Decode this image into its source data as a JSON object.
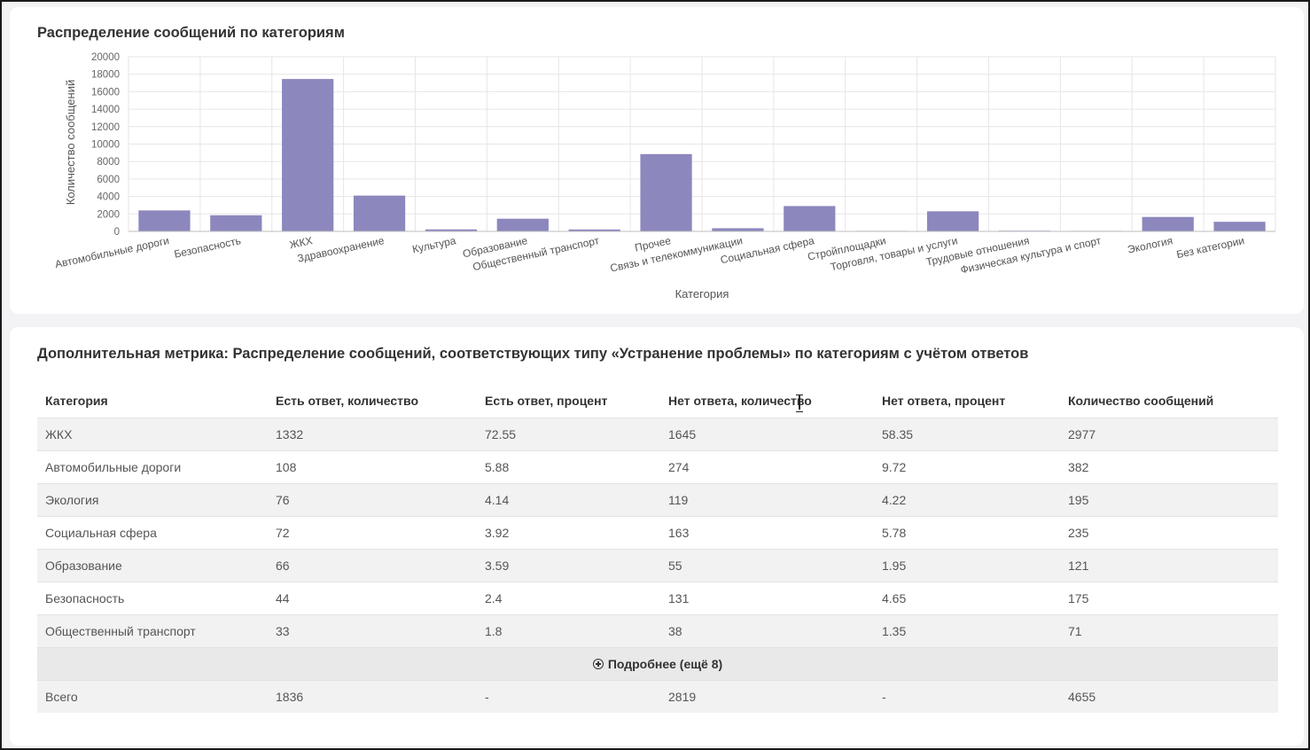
{
  "chart_card": {
    "title": "Распределение сообщений по категориям"
  },
  "chart_data": {
    "type": "bar",
    "title": "Распределение сообщений по категориям",
    "xlabel": "Категория",
    "ylabel": "Количество сообщений",
    "ylim": [
      0,
      20000
    ],
    "yticks": [
      0,
      2000,
      4000,
      6000,
      8000,
      10000,
      12000,
      14000,
      16000,
      18000,
      20000
    ],
    "grid": true,
    "bar_color": "#8c87bd",
    "categories": [
      "Автомобильные дороги",
      "Безопасность",
      "ЖКХ",
      "Здравоохранение",
      "Культура",
      "Образование",
      "Общественный транспорт",
      "Прочее",
      "Связь и телекоммуникации",
      "Социальная сфера",
      "Стройплощадки",
      "Торговля, товары и услуги",
      "Трудовые отношения",
      "Физическая культура и спорт",
      "Экология",
      "Без категории"
    ],
    "values": [
      2400,
      1850,
      17450,
      4100,
      230,
      1450,
      220,
      8850,
      360,
      2900,
      60,
      2300,
      80,
      60,
      1650,
      1100
    ]
  },
  "table_card": {
    "title": "Дополнительная метрика: Распределение сообщений, соответствующих типу «Устранение проблемы» по категориям с учётом ответов",
    "columns": [
      "Категория",
      "Есть ответ, количество",
      "Есть ответ, процент",
      "Нет ответа, количество",
      "Нет ответа, процент",
      "Количество сообщений"
    ],
    "rows": [
      [
        "ЖКХ",
        "1332",
        "72.55",
        "1645",
        "58.35",
        "2977"
      ],
      [
        "Автомобильные дороги",
        "108",
        "5.88",
        "274",
        "9.72",
        "382"
      ],
      [
        "Экология",
        "76",
        "4.14",
        "119",
        "4.22",
        "195"
      ],
      [
        "Социальная сфера",
        "72",
        "3.92",
        "163",
        "5.78",
        "235"
      ],
      [
        "Образование",
        "66",
        "3.59",
        "55",
        "1.95",
        "121"
      ],
      [
        "Безопасность",
        "44",
        "2.4",
        "131",
        "4.65",
        "175"
      ],
      [
        "Общественный транспорт",
        "33",
        "1.8",
        "38",
        "1.35",
        "71"
      ]
    ],
    "more_label": "Подробнее (ещё 8)",
    "total_row": [
      "Всего",
      "1836",
      "-",
      "2819",
      "-",
      "4655"
    ]
  }
}
